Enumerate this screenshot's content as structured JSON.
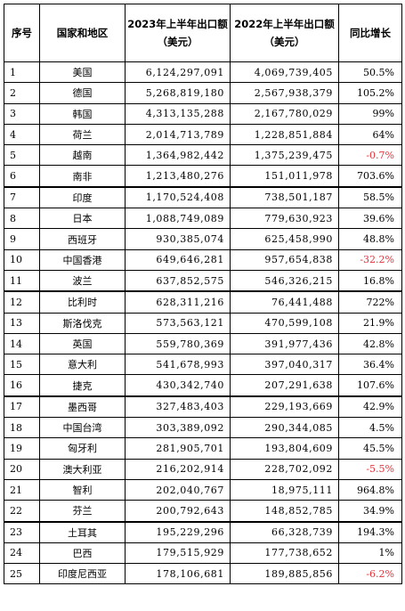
{
  "table": {
    "headers": {
      "index": "序号",
      "region": "国家和地区",
      "export_2023": "2023年上半年出口额（美元）",
      "export_2022": "2022年上半年出口额（美元）",
      "growth": "同比增长"
    },
    "rows": [
      {
        "idx": "1",
        "region": "美国",
        "v2023": "6,124,297,091",
        "v2022": "4,069,739,405",
        "growth": "50.5%",
        "negative": false
      },
      {
        "idx": "2",
        "region": "德国",
        "v2023": "5,268,819,180",
        "v2022": "2,567,938,379",
        "growth": "105.2%",
        "negative": false
      },
      {
        "idx": "3",
        "region": "韩国",
        "v2023": "4,313,135,288",
        "v2022": "2,167,780,029",
        "growth": "99%",
        "negative": false
      },
      {
        "idx": "4",
        "region": "荷兰",
        "v2023": "2,014,713,789",
        "v2022": "1,228,851,884",
        "growth": "64%",
        "negative": false
      },
      {
        "idx": "5",
        "region": "越南",
        "v2023": "1,364,982,442",
        "v2022": "1,375,239,475",
        "growth": "-0.7%",
        "negative": true
      },
      {
        "idx": "6",
        "region": "南非",
        "v2023": "1,213,480,276",
        "v2022": "151,011,978",
        "growth": "703.6%",
        "negative": false
      },
      {
        "idx": "7",
        "region": "印度",
        "v2023": "1,170,524,408",
        "v2022": "738,501,187",
        "growth": "58.5%",
        "negative": false
      },
      {
        "idx": "8",
        "region": "日本",
        "v2023": "1,088,749,089",
        "v2022": "779,630,923",
        "growth": "39.6%",
        "negative": false
      },
      {
        "idx": "9",
        "region": "西班牙",
        "v2023": "930,385,074",
        "v2022": "625,458,990",
        "growth": "48.8%",
        "negative": false
      },
      {
        "idx": "10",
        "region": "中国香港",
        "v2023": "649,646,281",
        "v2022": "957,654,838",
        "growth": "-32.2%",
        "negative": true
      },
      {
        "idx": "11",
        "region": "波兰",
        "v2023": "637,852,575",
        "v2022": "546,326,215",
        "growth": "16.8%",
        "negative": false
      },
      {
        "idx": "12",
        "region": "比利时",
        "v2023": "628,311,216",
        "v2022": "76,441,488",
        "growth": "722%",
        "negative": false
      },
      {
        "idx": "13",
        "region": "斯洛伐克",
        "v2023": "573,563,121",
        "v2022": "470,599,108",
        "growth": "21.9%",
        "negative": false
      },
      {
        "idx": "14",
        "region": "英国",
        "v2023": "559,780,369",
        "v2022": "391,977,436",
        "growth": "42.8%",
        "negative": false
      },
      {
        "idx": "15",
        "region": "意大利",
        "v2023": "541,678,993",
        "v2022": "397,040,317",
        "growth": "36.4%",
        "negative": false
      },
      {
        "idx": "16",
        "region": "捷克",
        "v2023": "430,342,740",
        "v2022": "207,291,638",
        "growth": "107.6%",
        "negative": false
      },
      {
        "idx": "17",
        "region": "墨西哥",
        "v2023": "327,483,403",
        "v2022": "229,193,669",
        "growth": "42.9%",
        "negative": false
      },
      {
        "idx": "18",
        "region": "中国台湾",
        "v2023": "303,389,092",
        "v2022": "290,344,085",
        "growth": "4.5%",
        "negative": false
      },
      {
        "idx": "19",
        "region": "匈牙利",
        "v2023": "281,905,701",
        "v2022": "193,804,609",
        "growth": "45.5%",
        "negative": false
      },
      {
        "idx": "20",
        "region": "澳大利亚",
        "v2023": "216,202,914",
        "v2022": "228,702,092",
        "growth": "-5.5%",
        "negative": true
      },
      {
        "idx": "21",
        "region": "智利",
        "v2023": "202,040,767",
        "v2022": "18,975,111",
        "growth": "964.8%",
        "negative": false
      },
      {
        "idx": "22",
        "region": "芬兰",
        "v2023": "200,792,643",
        "v2022": "148,852,785",
        "growth": "34.9%",
        "negative": false
      },
      {
        "idx": "23",
        "region": "土耳其",
        "v2023": "195,229,296",
        "v2022": "66,328,739",
        "growth": "194.3%",
        "negative": false
      },
      {
        "idx": "24",
        "region": "巴西",
        "v2023": "179,515,929",
        "v2022": "177,738,652",
        "growth": "1%",
        "negative": false
      },
      {
        "idx": "25",
        "region": "印度尼西亚",
        "v2023": "178,106,681",
        "v2022": "189,885,856",
        "growth": "-6.2%",
        "negative": true
      }
    ]
  },
  "colors": {
    "negative": "#e0343c",
    "border": "#000000"
  }
}
